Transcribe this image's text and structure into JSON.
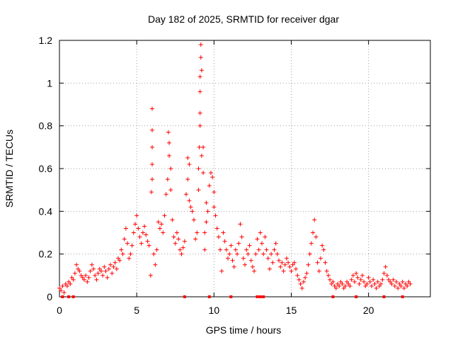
{
  "chart_data": {
    "type": "scatter",
    "title": "Day 182 of 2025, SRMTID for receiver dgar",
    "xlabel": "GPS time / hours",
    "ylabel": "SRMTID / TECUs",
    "xlim": [
      0,
      24
    ],
    "ylim": [
      0,
      1.2
    ],
    "grid": true,
    "marker": "plus",
    "series_color": "#ff0000",
    "x_ticks": [
      {
        "value": 0,
        "label": "0"
      },
      {
        "value": 5,
        "label": "5"
      },
      {
        "value": 10,
        "label": "10"
      },
      {
        "value": 15,
        "label": "15"
      },
      {
        "value": 20,
        "label": "20"
      }
    ],
    "y_ticks": [
      {
        "value": 0,
        "label": "0"
      },
      {
        "value": 0.2,
        "label": "0.2"
      },
      {
        "value": 0.4,
        "label": "0.4"
      },
      {
        "value": 0.6,
        "label": "0.6"
      },
      {
        "value": 0.8,
        "label": "0.8"
      },
      {
        "value": 1.0,
        "label": "1"
      },
      {
        "value": 1.2,
        "label": "1.2"
      }
    ],
    "series": [
      {
        "name": "SRMTID",
        "points": [
          [
            0.0,
            0.04
          ],
          [
            0.1,
            0.03
          ],
          [
            0.2,
            0.05
          ],
          [
            0.3,
            0.02
          ],
          [
            0.4,
            0.06
          ],
          [
            0.5,
            0.05
          ],
          [
            0.6,
            0.07
          ],
          [
            0.7,
            0.06
          ],
          [
            0.8,
            0.09
          ],
          [
            0.9,
            0.08
          ],
          [
            1.0,
            0.11
          ],
          [
            1.1,
            0.15
          ],
          [
            1.2,
            0.13
          ],
          [
            1.3,
            0.12
          ],
          [
            1.4,
            0.1
          ],
          [
            1.5,
            0.09
          ],
          [
            1.6,
            0.08
          ],
          [
            1.7,
            0.1
          ],
          [
            1.8,
            0.07
          ],
          [
            1.9,
            0.09
          ],
          [
            2.0,
            0.12
          ],
          [
            2.1,
            0.15
          ],
          [
            2.2,
            0.13
          ],
          [
            2.3,
            0.1
          ],
          [
            2.4,
            0.08
          ],
          [
            2.5,
            0.11
          ],
          [
            2.6,
            0.13
          ],
          [
            2.7,
            0.12
          ],
          [
            2.8,
            0.1
          ],
          [
            2.9,
            0.14
          ],
          [
            3.0,
            0.12
          ],
          [
            3.1,
            0.09
          ],
          [
            3.2,
            0.13
          ],
          [
            3.3,
            0.15
          ],
          [
            3.4,
            0.11
          ],
          [
            3.5,
            0.14
          ],
          [
            3.6,
            0.16
          ],
          [
            3.7,
            0.13
          ],
          [
            3.8,
            0.18
          ],
          [
            3.9,
            0.17
          ],
          [
            4.0,
            0.22
          ],
          [
            4.1,
            0.2
          ],
          [
            4.2,
            0.27
          ],
          [
            4.3,
            0.32
          ],
          [
            4.4,
            0.25
          ],
          [
            4.5,
            0.18
          ],
          [
            4.6,
            0.2
          ],
          [
            4.7,
            0.24
          ],
          [
            4.8,
            0.3
          ],
          [
            4.9,
            0.34
          ],
          [
            5.0,
            0.38
          ],
          [
            5.1,
            0.32
          ],
          [
            5.2,
            0.28
          ],
          [
            5.3,
            0.25
          ],
          [
            5.4,
            0.3
          ],
          [
            5.5,
            0.33
          ],
          [
            5.6,
            0.29
          ],
          [
            5.7,
            0.26
          ],
          [
            5.8,
            0.24
          ],
          [
            5.9,
            0.1
          ],
          [
            5.95,
            0.49
          ],
          [
            6.0,
            0.88
          ],
          [
            6.0,
            0.78
          ],
          [
            6.0,
            0.7
          ],
          [
            6.0,
            0.62
          ],
          [
            6.0,
            0.55
          ],
          [
            6.1,
            0.2
          ],
          [
            6.2,
            0.15
          ],
          [
            6.3,
            0.22
          ],
          [
            6.4,
            0.35
          ],
          [
            6.5,
            0.32
          ],
          [
            6.6,
            0.34
          ],
          [
            6.7,
            0.3
          ],
          [
            6.8,
            0.38
          ],
          [
            6.9,
            0.48
          ],
          [
            7.0,
            0.55
          ],
          [
            7.05,
            0.77
          ],
          [
            7.1,
            0.72
          ],
          [
            7.1,
            0.66
          ],
          [
            7.2,
            0.6
          ],
          [
            7.2,
            0.5
          ],
          [
            7.3,
            0.36
          ],
          [
            7.4,
            0.28
          ],
          [
            7.5,
            0.25
          ],
          [
            7.6,
            0.3
          ],
          [
            7.7,
            0.27
          ],
          [
            7.8,
            0.22
          ],
          [
            7.9,
            0.2
          ],
          [
            8.0,
            0.23
          ],
          [
            8.1,
            0.26
          ],
          [
            8.2,
            0.48
          ],
          [
            8.3,
            0.55
          ],
          [
            8.3,
            0.65
          ],
          [
            8.4,
            0.62
          ],
          [
            8.4,
            0.45
          ],
          [
            8.5,
            0.42
          ],
          [
            8.6,
            0.4
          ],
          [
            8.7,
            0.36
          ],
          [
            8.8,
            0.27
          ],
          [
            8.9,
            0.3
          ],
          [
            9.0,
            0.5
          ],
          [
            9.0,
            0.6
          ],
          [
            9.05,
            0.7
          ],
          [
            9.1,
            0.8
          ],
          [
            9.1,
            0.86
          ],
          [
            9.1,
            0.96
          ],
          [
            9.1,
            1.03
          ],
          [
            9.15,
            1.12
          ],
          [
            9.15,
            1.18
          ],
          [
            9.2,
            1.06
          ],
          [
            9.2,
            0.66
          ],
          [
            9.3,
            0.7
          ],
          [
            9.3,
            0.58
          ],
          [
            9.4,
            0.3
          ],
          [
            9.4,
            0.22
          ],
          [
            9.5,
            0.35
          ],
          [
            9.5,
            0.44
          ],
          [
            9.6,
            0.4
          ],
          [
            9.7,
            0.52
          ],
          [
            9.8,
            0.58
          ],
          [
            9.9,
            0.56
          ],
          [
            10.0,
            0.49
          ],
          [
            10.0,
            0.42
          ],
          [
            10.1,
            0.38
          ],
          [
            10.2,
            0.32
          ],
          [
            10.3,
            0.28
          ],
          [
            10.4,
            0.22
          ],
          [
            10.5,
            0.12
          ],
          [
            10.6,
            0.3
          ],
          [
            10.7,
            0.26
          ],
          [
            10.8,
            0.22
          ],
          [
            10.9,
            0.18
          ],
          [
            11.0,
            0.2
          ],
          [
            11.1,
            0.24
          ],
          [
            11.2,
            0.17
          ],
          [
            11.3,
            0.14
          ],
          [
            11.4,
            0.22
          ],
          [
            11.5,
            0.2
          ],
          [
            11.6,
            0.25
          ],
          [
            11.7,
            0.34
          ],
          [
            11.8,
            0.28
          ],
          [
            11.9,
            0.18
          ],
          [
            12.0,
            0.15
          ],
          [
            12.1,
            0.22
          ],
          [
            12.2,
            0.2
          ],
          [
            12.3,
            0.24
          ],
          [
            12.4,
            0.17
          ],
          [
            12.5,
            0.14
          ],
          [
            12.6,
            0.12
          ],
          [
            12.7,
            0.2
          ],
          [
            12.8,
            0.27
          ],
          [
            12.9,
            0.22
          ],
          [
            13.0,
            0.3
          ],
          [
            13.1,
            0.25
          ],
          [
            13.2,
            0.2
          ],
          [
            13.3,
            0.28
          ],
          [
            13.4,
            0.22
          ],
          [
            13.5,
            0.18
          ],
          [
            13.6,
            0.13
          ],
          [
            13.7,
            0.2
          ],
          [
            13.8,
            0.16
          ],
          [
            13.9,
            0.22
          ],
          [
            14.0,
            0.25
          ],
          [
            14.1,
            0.2
          ],
          [
            14.2,
            0.17
          ],
          [
            14.3,
            0.14
          ],
          [
            14.4,
            0.16
          ],
          [
            14.5,
            0.12
          ],
          [
            14.6,
            0.15
          ],
          [
            14.7,
            0.18
          ],
          [
            14.8,
            0.16
          ],
          [
            14.9,
            0.14
          ],
          [
            15.0,
            0.12
          ],
          [
            15.1,
            0.15
          ],
          [
            15.2,
            0.16
          ],
          [
            15.3,
            0.13
          ],
          [
            15.4,
            0.1
          ],
          [
            15.5,
            0.08
          ],
          [
            15.6,
            0.06
          ],
          [
            15.7,
            0.04
          ],
          [
            15.8,
            0.07
          ],
          [
            15.9,
            0.09
          ],
          [
            16.0,
            0.11
          ],
          [
            16.1,
            0.15
          ],
          [
            16.2,
            0.2
          ],
          [
            16.3,
            0.25
          ],
          [
            16.4,
            0.3
          ],
          [
            16.5,
            0.36
          ],
          [
            16.6,
            0.28
          ],
          [
            16.7,
            0.16
          ],
          [
            16.8,
            0.12
          ],
          [
            16.9,
            0.18
          ],
          [
            17.0,
            0.24
          ],
          [
            17.1,
            0.22
          ],
          [
            17.2,
            0.16
          ],
          [
            17.3,
            0.12
          ],
          [
            17.4,
            0.1
          ],
          [
            17.5,
            0.08
          ],
          [
            17.6,
            0.06
          ],
          [
            17.7,
            0.07
          ],
          [
            17.8,
            0.05
          ],
          [
            17.9,
            0.04
          ],
          [
            18.0,
            0.06
          ],
          [
            18.1,
            0.05
          ],
          [
            18.2,
            0.07
          ],
          [
            18.3,
            0.06
          ],
          [
            18.4,
            0.04
          ],
          [
            18.5,
            0.05
          ],
          [
            18.6,
            0.07
          ],
          [
            18.7,
            0.06
          ],
          [
            18.8,
            0.05
          ],
          [
            18.9,
            0.08
          ],
          [
            19.0,
            0.1
          ],
          [
            19.1,
            0.07
          ],
          [
            19.2,
            0.11
          ],
          [
            19.3,
            0.09
          ],
          [
            19.4,
            0.06
          ],
          [
            19.5,
            0.08
          ],
          [
            19.6,
            0.1
          ],
          [
            19.7,
            0.07
          ],
          [
            19.8,
            0.05
          ],
          [
            19.9,
            0.06
          ],
          [
            20.0,
            0.09
          ],
          [
            20.1,
            0.07
          ],
          [
            20.2,
            0.05
          ],
          [
            20.3,
            0.08
          ],
          [
            20.4,
            0.06
          ],
          [
            20.5,
            0.04
          ],
          [
            20.6,
            0.07
          ],
          [
            20.7,
            0.05
          ],
          [
            20.8,
            0.06
          ],
          [
            20.9,
            0.08
          ],
          [
            21.0,
            0.11
          ],
          [
            21.1,
            0.14
          ],
          [
            21.2,
            0.1
          ],
          [
            21.3,
            0.08
          ],
          [
            21.4,
            0.07
          ],
          [
            21.5,
            0.06
          ],
          [
            21.6,
            0.08
          ],
          [
            21.7,
            0.05
          ],
          [
            21.8,
            0.07
          ],
          [
            21.9,
            0.04
          ],
          [
            22.0,
            0.06
          ],
          [
            22.1,
            0.05
          ],
          [
            22.2,
            0.07
          ],
          [
            22.3,
            0.04
          ],
          [
            22.4,
            0.06
          ],
          [
            22.5,
            0.05
          ],
          [
            22.6,
            0.07
          ],
          [
            22.7,
            0.06
          ]
        ]
      }
    ],
    "baseline_markers_x": [
      0.2,
      0.6,
      0.9,
      8.1,
      9.7,
      11.1,
      12.8,
      13.0,
      13.2,
      17.7,
      19.2,
      21.0,
      22.2
    ]
  }
}
